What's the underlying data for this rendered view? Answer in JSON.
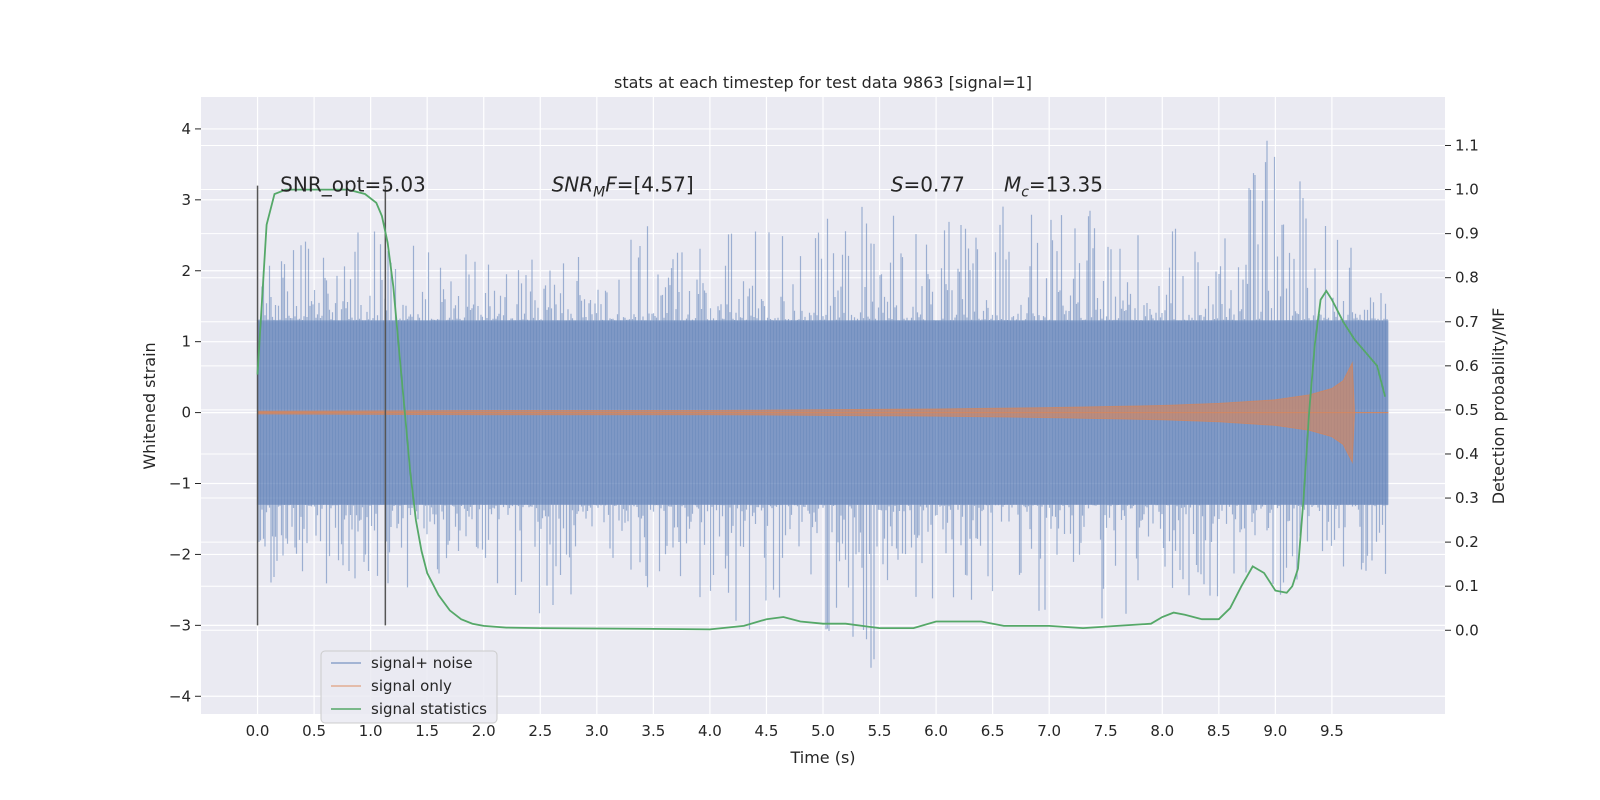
{
  "chart_data": {
    "type": "line",
    "title": "stats at each timestep for test data 9863 [signal=1]",
    "xlabel": "Time (s)",
    "ylabel": "Whitened strain",
    "y2label": "Detection probability/MF",
    "xlim": [
      -0.5,
      10.5
    ],
    "ylim": [
      -4.25,
      4.45
    ],
    "y2lim": [
      -0.19,
      1.21
    ],
    "xticks": [
      0.0,
      0.5,
      1.0,
      1.5,
      2.0,
      2.5,
      3.0,
      3.5,
      4.0,
      4.5,
      5.0,
      5.5,
      6.0,
      6.5,
      7.0,
      7.5,
      8.0,
      8.5,
      9.0,
      9.5
    ],
    "xtick_labels": [
      "0.0",
      "0.5",
      "1.0",
      "1.5",
      "2.0",
      "2.5",
      "3.0",
      "3.5",
      "4.0",
      "4.5",
      "5.0",
      "5.5",
      "6.0",
      "6.5",
      "7.0",
      "7.5",
      "8.0",
      "8.5",
      "9.0",
      "9.5"
    ],
    "yticks": [
      -4,
      -3,
      -2,
      -1,
      0,
      1,
      2,
      3,
      4
    ],
    "ytick_labels": [
      "−4",
      "−3",
      "−2",
      "−1",
      "0",
      "1",
      "2",
      "3",
      "4"
    ],
    "y2ticks": [
      0.0,
      0.1,
      0.2,
      0.3,
      0.4,
      0.5,
      0.6,
      0.7,
      0.8,
      0.9,
      1.0,
      1.1
    ],
    "y2tick_labels": [
      "0.0",
      "0.1",
      "0.2",
      "0.3",
      "0.4",
      "0.5",
      "0.6",
      "0.7",
      "0.8",
      "0.9",
      "1.0",
      "1.1"
    ],
    "grid": true,
    "legend_position": "lower-left",
    "annotations": [
      {
        "x": 0.2,
        "y": 3.12,
        "text": "SNR_opt=5.03",
        "italic": false
      },
      {
        "x": 2.6,
        "y": 3.12,
        "text": "SNR",
        "sub": "M",
        "tail": "F=[4.57]",
        "italic": true
      },
      {
        "x": 5.6,
        "y": 3.12,
        "text": "S",
        "tail": "=0.77",
        "italic": true
      },
      {
        "x": 6.6,
        "y": 3.12,
        "text": "M",
        "sub": "c",
        "tail": "=13.35",
        "italic": true
      }
    ],
    "vlines": [
      {
        "x": 0.0,
        "y0": -3.0,
        "y1": 3.2
      },
      {
        "x": 1.13,
        "y0": -3.0,
        "y1": 3.2
      }
    ],
    "noise_envelope": {
      "x": [
        0.0,
        0.5,
        1.0,
        1.5,
        2.0,
        2.5,
        3.0,
        3.5,
        4.0,
        4.5,
        5.0,
        5.5,
        6.0,
        6.5,
        7.0,
        7.5,
        8.0,
        8.5,
        9.0,
        9.5,
        10.0
      ],
      "upper": [
        2.0,
        2.5,
        2.8,
        2.3,
        2.2,
        2.4,
        2.3,
        2.7,
        2.6,
        2.8,
        2.7,
        3.2,
        2.6,
        3.0,
        2.8,
        2.9,
        2.6,
        2.7,
        4.05,
        2.7,
        1.7
      ],
      "lower": [
        -2.4,
        -2.8,
        -2.4,
        -2.5,
        -2.3,
        -2.9,
        -2.4,
        -2.5,
        -3.2,
        -3.0,
        -3.2,
        -3.9,
        -2.8,
        -2.7,
        -2.9,
        -3.3,
        -2.6,
        -2.8,
        -2.9,
        -2.5,
        -2.3
      ],
      "band": 1.3
    },
    "signal_envelope": {
      "x": [
        0.0,
        2.0,
        4.0,
        6.0,
        7.0,
        8.0,
        8.5,
        9.0,
        9.3,
        9.5,
        9.6,
        9.68,
        9.7,
        10.0
      ],
      "amp": [
        0.02,
        0.03,
        0.03,
        0.05,
        0.07,
        0.1,
        0.13,
        0.18,
        0.25,
        0.34,
        0.45,
        0.7,
        0.0,
        0.0
      ]
    },
    "series": [
      {
        "name": "signal+ noise",
        "color": "#4c72b0"
      },
      {
        "name": "signal only",
        "color": "#dd8452"
      },
      {
        "name": "signal statistics",
        "color": "#55a868",
        "axis": "right",
        "x": [
          0.0,
          0.08,
          0.15,
          0.25,
          0.4,
          0.6,
          0.8,
          0.95,
          1.05,
          1.1,
          1.15,
          1.2,
          1.25,
          1.3,
          1.35,
          1.4,
          1.45,
          1.5,
          1.6,
          1.7,
          1.8,
          1.9,
          2.0,
          2.2,
          2.5,
          3.0,
          3.5,
          4.0,
          4.3,
          4.5,
          4.65,
          4.8,
          5.0,
          5.2,
          5.5,
          5.8,
          6.0,
          6.2,
          6.4,
          6.6,
          6.8,
          7.0,
          7.3,
          7.6,
          7.9,
          8.0,
          8.1,
          8.2,
          8.35,
          8.5,
          8.6,
          8.7,
          8.8,
          8.9,
          9.0,
          9.1,
          9.15,
          9.2,
          9.25,
          9.3,
          9.35,
          9.4,
          9.45,
          9.5,
          9.6,
          9.7,
          9.8,
          9.9,
          9.97
        ],
        "y": [
          0.58,
          0.92,
          0.99,
          1.0,
          1.0,
          1.0,
          1.0,
          0.99,
          0.97,
          0.94,
          0.88,
          0.78,
          0.64,
          0.5,
          0.36,
          0.25,
          0.18,
          0.13,
          0.08,
          0.045,
          0.025,
          0.015,
          0.01,
          0.006,
          0.005,
          0.004,
          0.003,
          0.002,
          0.01,
          0.025,
          0.03,
          0.02,
          0.015,
          0.015,
          0.005,
          0.005,
          0.02,
          0.02,
          0.02,
          0.01,
          0.01,
          0.01,
          0.005,
          0.01,
          0.015,
          0.03,
          0.04,
          0.035,
          0.025,
          0.025,
          0.05,
          0.1,
          0.145,
          0.13,
          0.09,
          0.085,
          0.1,
          0.14,
          0.3,
          0.5,
          0.65,
          0.75,
          0.77,
          0.75,
          0.7,
          0.66,
          0.63,
          0.6,
          0.53
        ]
      }
    ]
  }
}
